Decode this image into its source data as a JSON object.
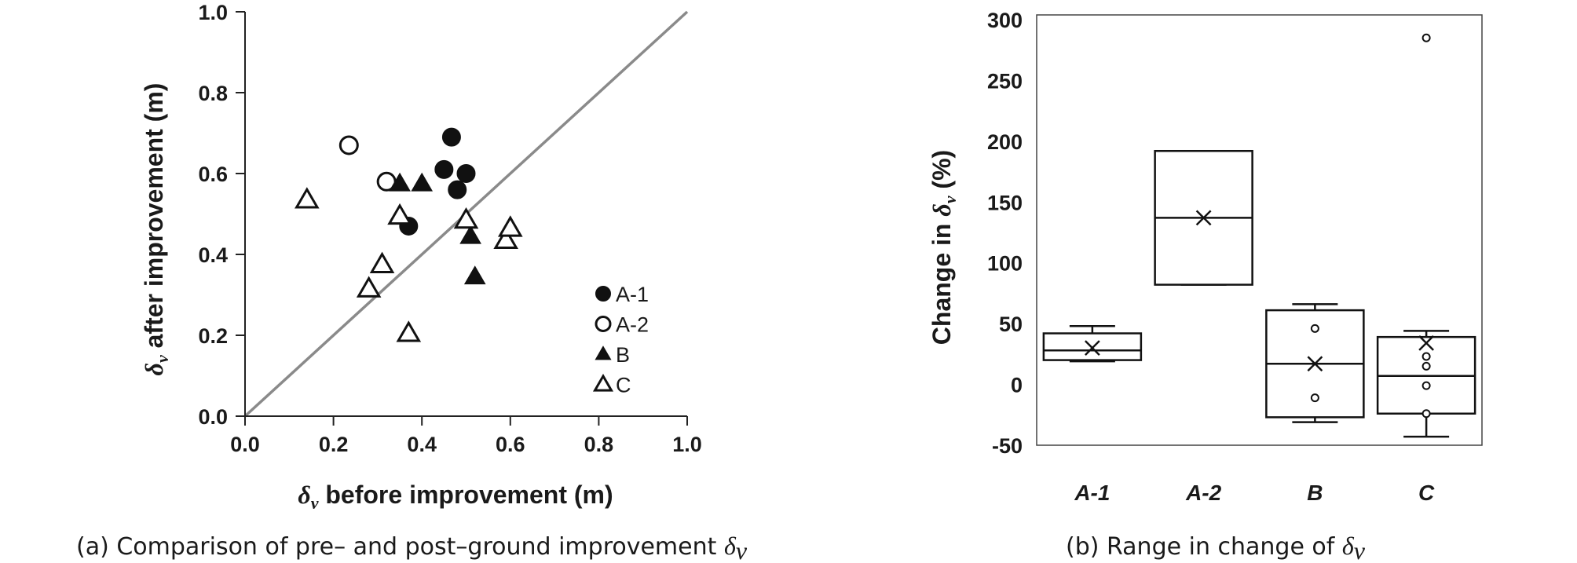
{
  "chart_data": [
    {
      "type": "scatter",
      "caption_prefix": "(a) Comparison of pre– and post–ground improvement ",
      "caption_symbol": "δ",
      "caption_subscript": "v",
      "xlabel_symbol": "δ",
      "xlabel_subscript": "v",
      "xlabel_text": " before improvement (m)",
      "ylabel_symbol": "δ",
      "ylabel_subscript": "v",
      "ylabel_text": " after improvement (m)",
      "xlim": [
        0.0,
        1.0
      ],
      "ylim": [
        0.0,
        1.0
      ],
      "xticks": [
        "0.0",
        "0.2",
        "0.4",
        "0.6",
        "0.8",
        "1.0"
      ],
      "yticks": [
        "0.0",
        "0.2",
        "0.4",
        "0.6",
        "0.8",
        "1.0"
      ],
      "reference_line": [
        [
          0.0,
          0.0
        ],
        [
          1.0,
          1.0
        ]
      ],
      "legend_position": "bottom-right",
      "series": [
        {
          "name": "A-1",
          "marker": "filled-circle",
          "points": [
            [
              0.37,
              0.47
            ],
            [
              0.45,
              0.61
            ],
            [
              0.467,
              0.69
            ],
            [
              0.48,
              0.56
            ],
            [
              0.5,
              0.6
            ]
          ]
        },
        {
          "name": "A-2",
          "marker": "open-circle",
          "points": [
            [
              0.235,
              0.67
            ],
            [
              0.32,
              0.58
            ]
          ]
        },
        {
          "name": "B",
          "marker": "filled-triangle",
          "points": [
            [
              0.35,
              0.575
            ],
            [
              0.4,
              0.575
            ],
            [
              0.51,
              0.445
            ],
            [
              0.52,
              0.345
            ]
          ]
        },
        {
          "name": "C",
          "marker": "open-triangle",
          "points": [
            [
              0.14,
              0.535
            ],
            [
              0.35,
              0.495
            ],
            [
              0.31,
              0.375
            ],
            [
              0.28,
              0.315
            ],
            [
              0.37,
              0.205
            ],
            [
              0.5,
              0.485
            ],
            [
              0.59,
              0.435
            ],
            [
              0.6,
              0.465
            ]
          ]
        }
      ]
    },
    {
      "type": "box",
      "caption_prefix": "(b) Range in change of ",
      "caption_symbol": "δ",
      "caption_subscript": "v",
      "ylabel_text": "Change in ",
      "ylabel_symbol": "δ",
      "ylabel_subscript": "v",
      "ylabel_suffix": " (%)",
      "ylim": [
        -50,
        300
      ],
      "yticks": [
        "-50",
        "0",
        "50",
        "100",
        "150",
        "200",
        "250",
        "300"
      ],
      "categories": [
        "A-1",
        "A-2",
        "B",
        "C"
      ],
      "boxes": [
        {
          "category": "A-1",
          "whisker_low": 19,
          "q1": 20,
          "median": 28,
          "q3": 42,
          "whisker_high": 48,
          "mean": 30,
          "outliers": []
        },
        {
          "category": "A-2",
          "whisker_low": 82,
          "q1": 82,
          "median": 137,
          "q3": 192,
          "whisker_high": 192,
          "mean": 137,
          "outliers": []
        },
        {
          "category": "B",
          "whisker_low": -31,
          "q1": -27,
          "median": 17,
          "q3": 61,
          "whisker_high": 66,
          "mean": 17,
          "outliers": [
            46,
            -11
          ]
        },
        {
          "category": "C",
          "whisker_low": -43,
          "q1": -24,
          "median": 7,
          "q3": 39,
          "whisker_high": 44,
          "mean": 34,
          "outliers": [
            285,
            23,
            15,
            -1,
            -24
          ]
        }
      ]
    }
  ]
}
